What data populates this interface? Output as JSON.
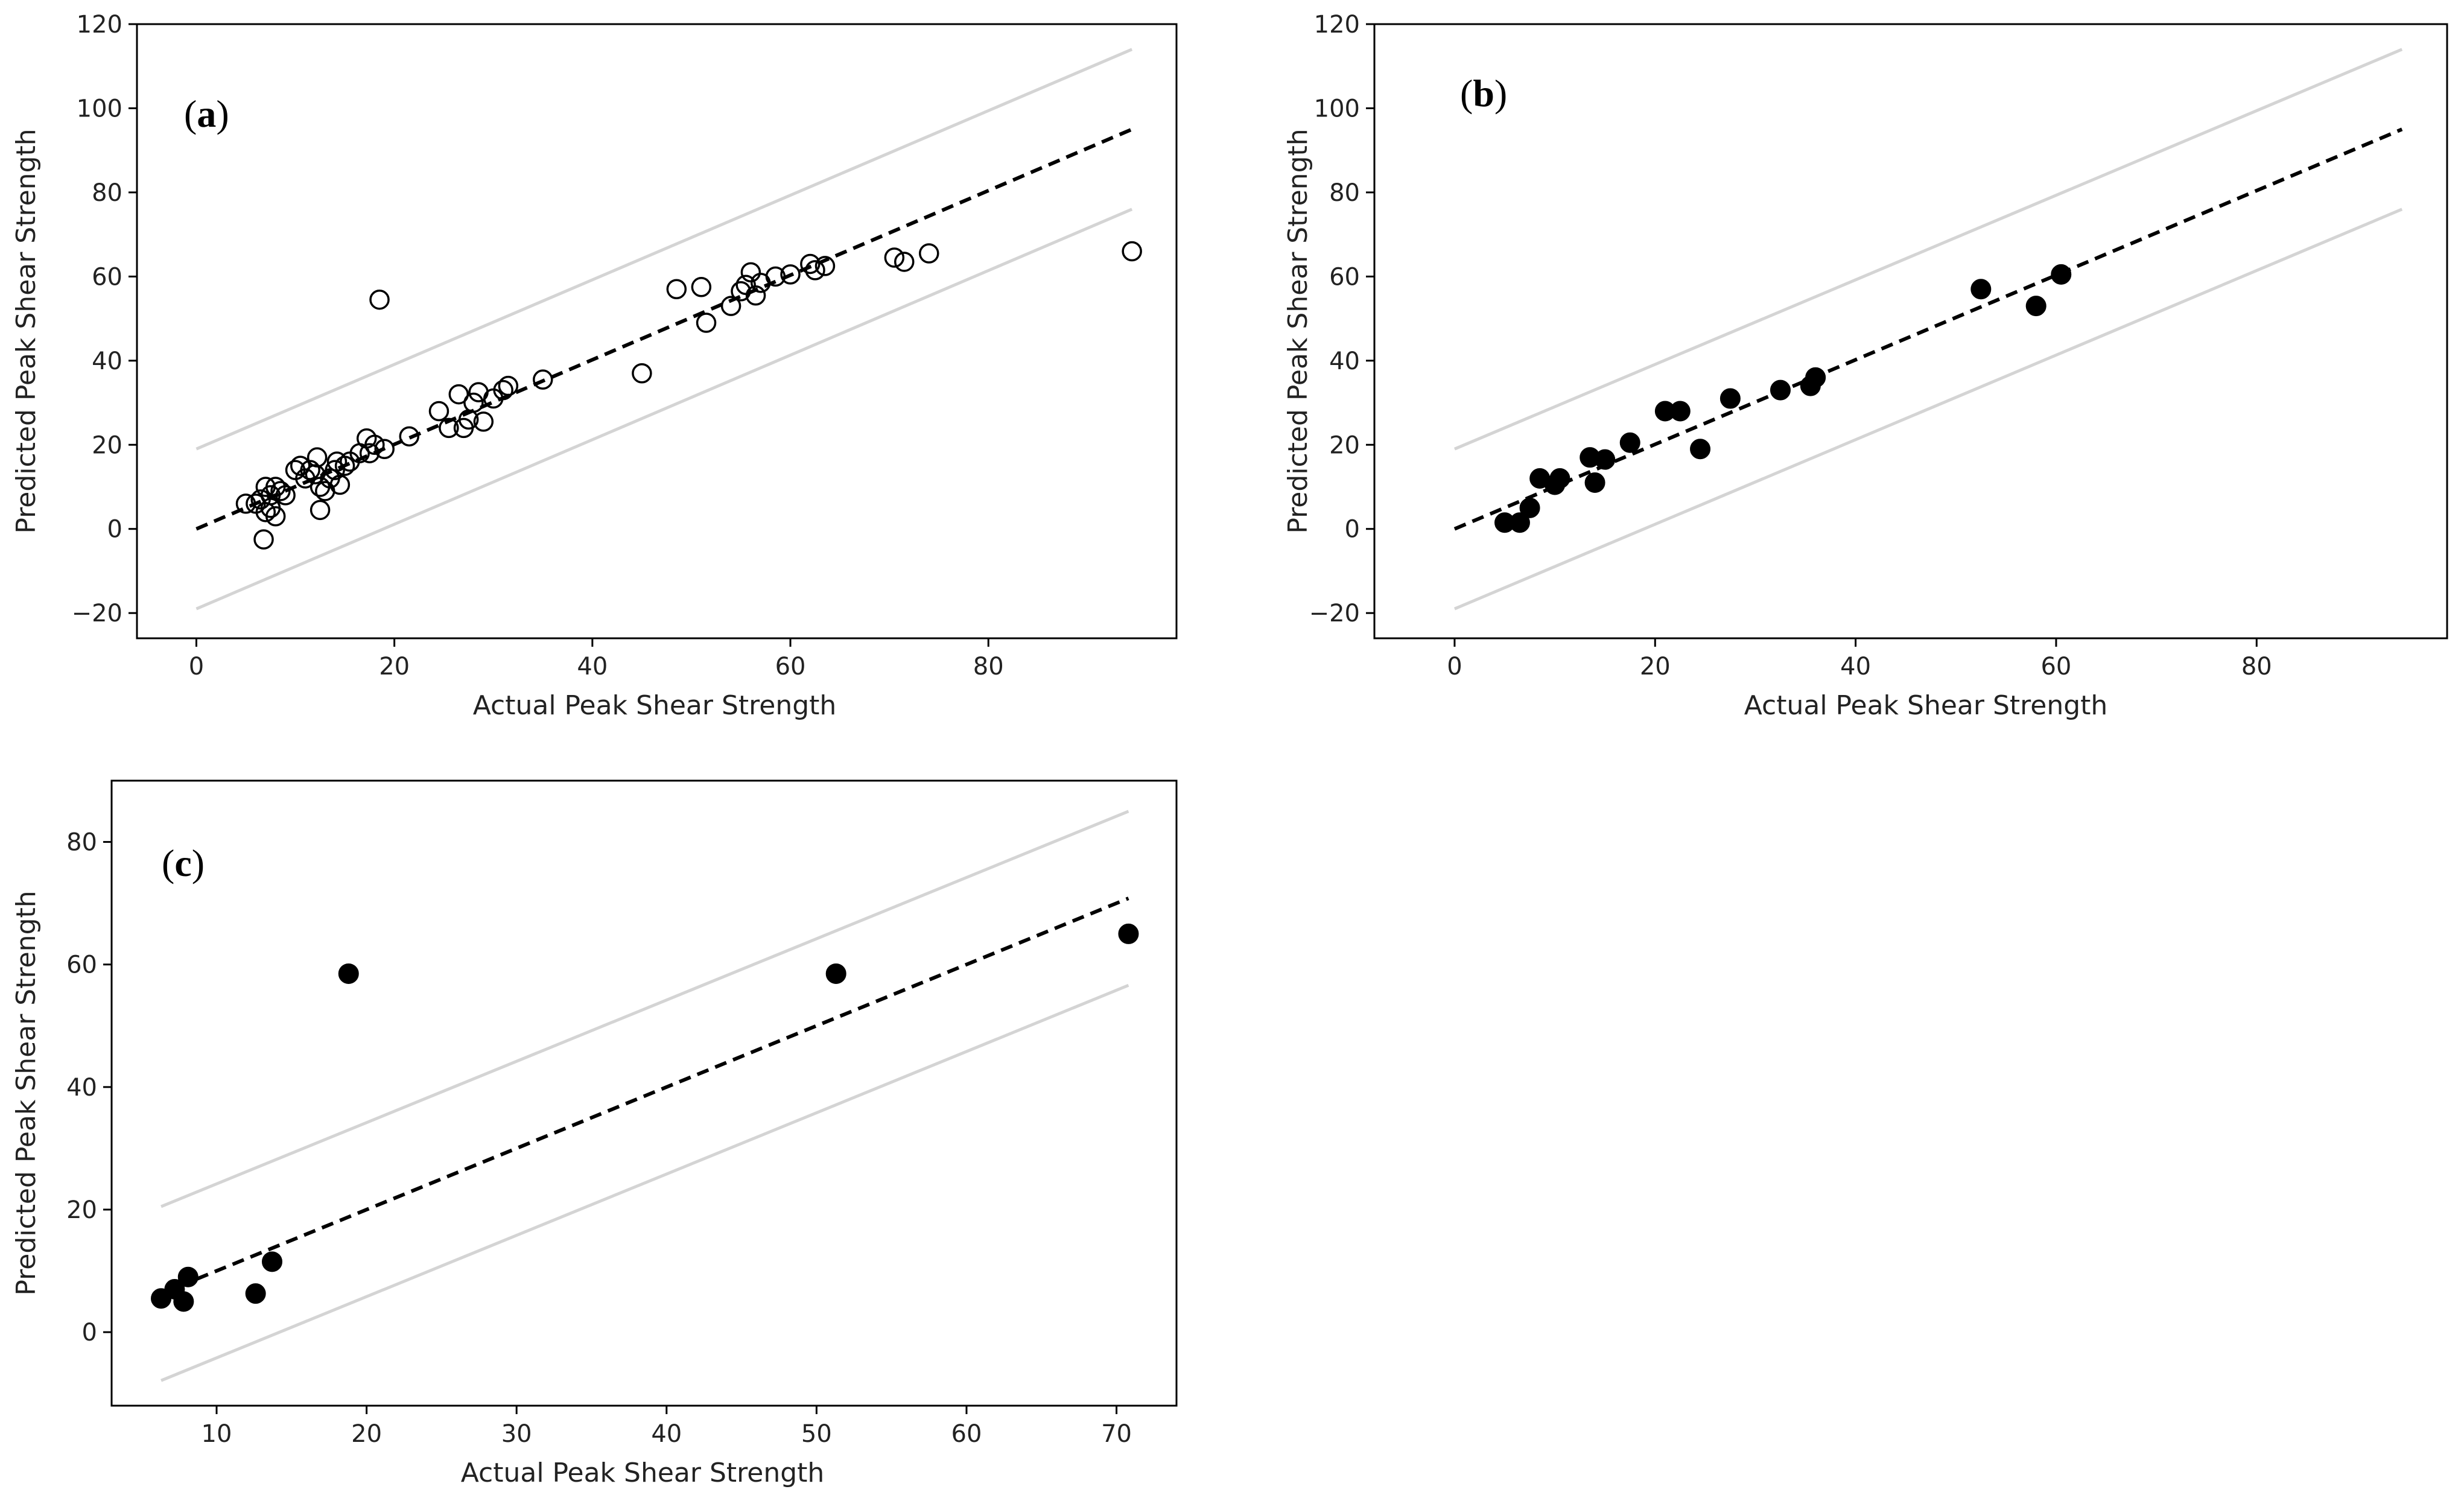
{
  "colors": {
    "marker": "#000000",
    "band": "#d4d4d4",
    "fit": "#000000",
    "frame": "#000000",
    "background": "#ffffff"
  },
  "chart_data": [
    {
      "id": "a",
      "type": "scatter",
      "panel_label": {
        "open": "(",
        "letter": "a",
        "close": ")"
      },
      "xlabel": "Actual Peak Shear Strength",
      "ylabel": "Predicted Peak Shear Strength",
      "xlim": [
        -6,
        99
      ],
      "ylim": [
        -26,
        120
      ],
      "xticks": [
        0,
        20,
        40,
        60,
        80
      ],
      "xtick_labels": [
        "0",
        "20",
        "40",
        "60",
        "80"
      ],
      "yticks": [
        -20,
        0,
        20,
        40,
        60,
        80,
        100,
        120
      ],
      "ytick_labels": [
        "−20",
        "0",
        "20",
        "40",
        "60",
        "80",
        "100",
        "120"
      ],
      "marker": "open-circle",
      "reference_lines": {
        "fit": {
          "style": "dashed",
          "x": [
            0,
            94.5
          ],
          "y": [
            0,
            95
          ]
        },
        "upper_band": {
          "style": "solid-light",
          "x": [
            0,
            94.5
          ],
          "y": [
            19,
            114
          ]
        },
        "lower_band": {
          "style": "solid-light",
          "x": [
            0,
            94.5
          ],
          "y": [
            -19,
            76
          ]
        }
      },
      "points": [
        [
          5,
          6
        ],
        [
          6,
          6
        ],
        [
          6.5,
          7
        ],
        [
          7,
          10
        ],
        [
          7,
          4
        ],
        [
          7.5,
          8
        ],
        [
          8,
          3
        ],
        [
          7.5,
          5
        ],
        [
          8,
          10
        ],
        [
          8.5,
          9
        ],
        [
          9,
          8
        ],
        [
          6.8,
          -2.5
        ],
        [
          10,
          14
        ],
        [
          10.5,
          15
        ],
        [
          11,
          12
        ],
        [
          11.5,
          14
        ],
        [
          12,
          13
        ],
        [
          12.5,
          10
        ],
        [
          12.2,
          17
        ],
        [
          12.5,
          4.5
        ],
        [
          13,
          9
        ],
        [
          13.5,
          12
        ],
        [
          14,
          14
        ],
        [
          14.2,
          16
        ],
        [
          14.5,
          10.5
        ],
        [
          15,
          15
        ],
        [
          15.5,
          16
        ],
        [
          16.5,
          18
        ],
        [
          17.2,
          21.5
        ],
        [
          17.5,
          18
        ],
        [
          18,
          20
        ],
        [
          19,
          19
        ],
        [
          18.5,
          54.5
        ],
        [
          21.5,
          22
        ],
        [
          24.5,
          28
        ],
        [
          25.5,
          24
        ],
        [
          26.5,
          32
        ],
        [
          27,
          24
        ],
        [
          27.5,
          26
        ],
        [
          28,
          30
        ],
        [
          28.5,
          32.5
        ],
        [
          29,
          25.5
        ],
        [
          30,
          31
        ],
        [
          31,
          33
        ],
        [
          31.5,
          34
        ],
        [
          35,
          35.5
        ],
        [
          45,
          37
        ],
        [
          48.5,
          57
        ],
        [
          51,
          57.5
        ],
        [
          51.5,
          49
        ],
        [
          54,
          53
        ],
        [
          55,
          56.5
        ],
        [
          55.5,
          58
        ],
        [
          56,
          61
        ],
        [
          56.5,
          55.5
        ],
        [
          57,
          58.5
        ],
        [
          58.5,
          60
        ],
        [
          60,
          60.5
        ],
        [
          62,
          63
        ],
        [
          62.5,
          61.5
        ],
        [
          63.5,
          62.5
        ],
        [
          70.5,
          64.5
        ],
        [
          71.5,
          63.5
        ],
        [
          74,
          65.5
        ],
        [
          94.5,
          66
        ]
      ]
    },
    {
      "id": "b",
      "type": "scatter",
      "panel_label": {
        "open": "(",
        "letter": "b",
        "close": ")"
      },
      "xlabel": "Actual Peak Shear Strength",
      "ylabel": "Predicted Peak Shear Strength",
      "xlim": [
        -8,
        99
      ],
      "ylim": [
        -26,
        120
      ],
      "xticks": [
        0,
        20,
        40,
        60,
        80
      ],
      "xtick_labels": [
        "0",
        "20",
        "40",
        "60",
        "80"
      ],
      "yticks": [
        -20,
        0,
        20,
        40,
        60,
        80,
        100,
        120
      ],
      "ytick_labels": [
        "−20",
        "0",
        "20",
        "40",
        "60",
        "80",
        "100",
        "120"
      ],
      "marker": "filled-circle",
      "reference_lines": {
        "fit": {
          "style": "dashed",
          "x": [
            0,
            94.5
          ],
          "y": [
            0,
            95
          ]
        },
        "upper_band": {
          "style": "solid-light",
          "x": [
            0,
            94.5
          ],
          "y": [
            19,
            114
          ]
        },
        "lower_band": {
          "style": "solid-light",
          "x": [
            0,
            94.5
          ],
          "y": [
            -19,
            76
          ]
        }
      },
      "points": [
        [
          5,
          1.5
        ],
        [
          6.5,
          1.5
        ],
        [
          7.5,
          5
        ],
        [
          8.5,
          12
        ],
        [
          10,
          10.5
        ],
        [
          10.5,
          12
        ],
        [
          13.5,
          17
        ],
        [
          14,
          11
        ],
        [
          15,
          16.5
        ],
        [
          17.5,
          20.5
        ],
        [
          21,
          28
        ],
        [
          22.5,
          28
        ],
        [
          24.5,
          19
        ],
        [
          27.5,
          31
        ],
        [
          32.5,
          33
        ],
        [
          35.5,
          34
        ],
        [
          36,
          36
        ],
        [
          52.5,
          57
        ],
        [
          58,
          53
        ],
        [
          60.5,
          60.5
        ]
      ]
    },
    {
      "id": "c",
      "type": "scatter",
      "panel_label": {
        "open": "(",
        "letter": "c",
        "close": ")"
      },
      "xlabel": "Actual Peak Shear Strength",
      "ylabel": "Predicted Peak Shear Strength",
      "xlim": [
        3,
        74
      ],
      "ylim": [
        -12,
        90
      ],
      "xticks": [
        10,
        20,
        30,
        40,
        50,
        60,
        70
      ],
      "xtick_labels": [
        "10",
        "20",
        "30",
        "40",
        "50",
        "60",
        "70"
      ],
      "yticks": [
        0,
        20,
        40,
        60,
        80
      ],
      "ytick_labels": [
        "0",
        "20",
        "40",
        "60",
        "80"
      ],
      "marker": "filled-circle",
      "reference_lines": {
        "fit": {
          "style": "dashed",
          "x": [
            6.3,
            70.8
          ],
          "y": [
            6.3,
            70.8
          ]
        },
        "upper_band": {
          "style": "solid-light",
          "x": [
            6.3,
            70.8
          ],
          "y": [
            20.5,
            85
          ]
        },
        "lower_band": {
          "style": "solid-light",
          "x": [
            6.3,
            70.8
          ],
          "y": [
            -7.9,
            56.6
          ]
        }
      },
      "points": [
        [
          6.3,
          5.5
        ],
        [
          7.2,
          7
        ],
        [
          7.8,
          5
        ],
        [
          8.1,
          9
        ],
        [
          12.6,
          6.3
        ],
        [
          13.7,
          11.5
        ],
        [
          18.8,
          58.5
        ],
        [
          51.3,
          58.5
        ],
        [
          70.8,
          65
        ]
      ]
    }
  ]
}
